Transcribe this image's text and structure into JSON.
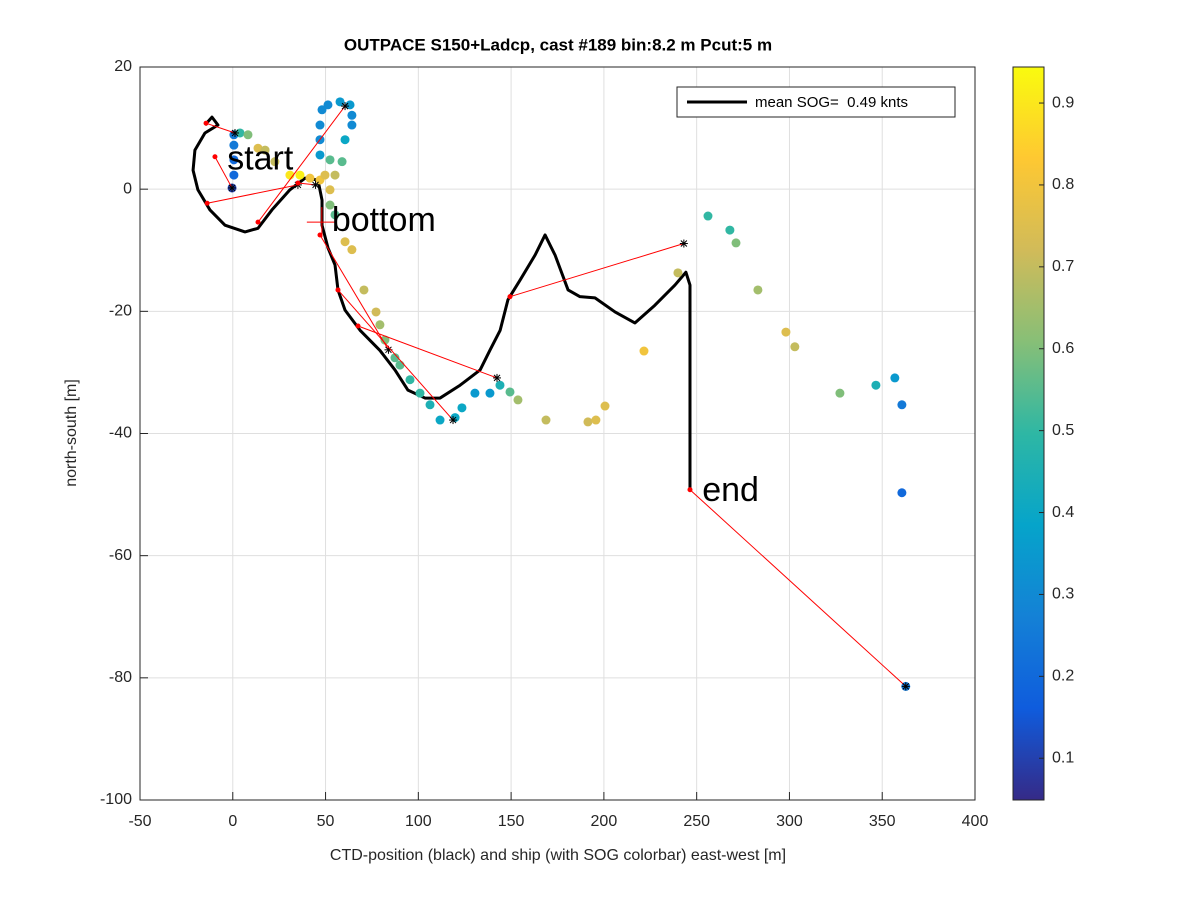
{
  "chart_data": {
    "type": "scatter",
    "title": "OUTPACE S150+Ladcp, cast #189 bin:8.2 m  Pcut:5 m",
    "x_label": "CTD-position (black) and ship (with SOG colorbar) east-west [m]",
    "y_label": "north-south [m]",
    "xlim": [
      -50,
      400
    ],
    "ylim": [
      -100,
      20
    ],
    "xticks": [
      -50,
      0,
      50,
      100,
      150,
      200,
      250,
      300,
      350,
      400
    ],
    "yticks": [
      -100,
      -80,
      -60,
      -40,
      -20,
      0,
      20
    ],
    "grid": true,
    "legend_position": "top-right",
    "series": [
      {
        "name": "mean SOG=  0.49 knts",
        "color": "#000000",
        "x": [
          -15.0,
          -11.2,
          -8.0,
          -15.0,
          -20.4,
          -21.4,
          -18.8,
          -12.3,
          -4.2,
          6.6,
          13.6,
          21.1,
          30.8,
          38.9,
          45.9,
          48.1,
          48.1,
          51.3,
          55.1,
          56.7,
          60.5,
          68.6,
          79.3,
          87.4,
          94.4,
          103.6,
          111.7,
          122.5,
          133.3,
          138.7,
          144.1,
          148.3,
          154.8,
          162.9,
          168.3,
          173.7,
          180.7,
          187.1,
          195.2,
          206.0,
          216.7,
          227.5,
          238.3,
          244.2,
          246.4,
          246.4
        ],
        "y": [
          10.5,
          11.8,
          10.5,
          9.2,
          6.4,
          3.1,
          -0.1,
          -3.4,
          -5.9,
          -7.0,
          -6.4,
          -3.4,
          -0.1,
          1.8,
          1.5,
          -1.8,
          -5.9,
          -9.6,
          -12.4,
          -16.5,
          -19.8,
          -23.1,
          -26.4,
          -29.6,
          -32.9,
          -34.2,
          -34.2,
          -32.1,
          -29.6,
          -26.3,
          -23.1,
          -18.1,
          -14.9,
          -10.8,
          -7.5,
          -10.8,
          -16.5,
          -17.6,
          -17.8,
          -20.1,
          -21.9,
          -19.0,
          -15.7,
          -13.6,
          -15.7,
          -49.2
        ]
      }
    ],
    "ship": {
      "x": [
        -0.4,
        0.6,
        0.6,
        0.6,
        0.6,
        3.9,
        8.2,
        13.6,
        17.4,
        22.7,
        30.8,
        36.2,
        41.6,
        47.0,
        49.7,
        52.4,
        47.0,
        47.0,
        47.0,
        48.1,
        51.3,
        57.8,
        63.2,
        64.2,
        64.2,
        60.5,
        58.9,
        55.1,
        52.4,
        52.4,
        55.1,
        60.5,
        64.2,
        70.7,
        77.2,
        79.3,
        82.0,
        87.4,
        90.1,
        95.5,
        100.9,
        106.3,
        111.7,
        119.8,
        123.5,
        130.5,
        138.6,
        144.0,
        149.4,
        153.7,
        168.8,
        191.4,
        195.7,
        200.6,
        221.6,
        239.9,
        256.1,
        267.9,
        271.2,
        283.0,
        298.1,
        302.9,
        327.2,
        346.6,
        356.8,
        360.6,
        360.6,
        362.7
      ],
      "y": [
        0.2,
        2.3,
        4.8,
        7.2,
        8.9,
        9.2,
        8.9,
        6.7,
        6.4,
        4.5,
        2.3,
        2.3,
        1.8,
        1.5,
        2.3,
        4.8,
        5.6,
        8.1,
        10.5,
        13.0,
        13.8,
        14.3,
        13.8,
        12.1,
        10.5,
        8.1,
        4.5,
        2.3,
        -0.1,
        -2.6,
        -4.2,
        -8.6,
        -9.9,
        -16.5,
        -20.1,
        -22.2,
        -24.7,
        -27.6,
        -28.8,
        -31.2,
        -33.4,
        -35.3,
        -37.8,
        -37.4,
        -35.8,
        -33.4,
        -33.4,
        -32.1,
        -33.2,
        -34.5,
        -37.8,
        -38.1,
        -37.8,
        -35.5,
        -26.5,
        -13.7,
        -4.4,
        -6.7,
        -8.8,
        -16.5,
        -23.4,
        -25.8,
        -33.4,
        -32.1,
        -30.9,
        -35.3,
        -49.7,
        -81.4
      ],
      "sog": [
        0.1,
        0.2,
        0.2,
        0.25,
        0.25,
        0.5,
        0.6,
        0.75,
        0.7,
        0.7,
        0.9,
        0.92,
        0.8,
        0.8,
        0.75,
        0.55,
        0.35,
        0.3,
        0.3,
        0.3,
        0.3,
        0.35,
        0.35,
        0.3,
        0.3,
        0.4,
        0.55,
        0.7,
        0.75,
        0.6,
        0.55,
        0.75,
        0.75,
        0.7,
        0.72,
        0.65,
        0.6,
        0.55,
        0.55,
        0.5,
        0.5,
        0.45,
        0.4,
        0.4,
        0.4,
        0.35,
        0.35,
        0.45,
        0.55,
        0.65,
        0.7,
        0.72,
        0.75,
        0.75,
        0.8,
        0.7,
        0.5,
        0.5,
        0.6,
        0.65,
        0.75,
        0.7,
        0.6,
        0.45,
        0.35,
        0.25,
        0.2,
        0.25
      ]
    },
    "links": {
      "color": "#ff0000",
      "x_start": [
        -14.4,
        -9.6,
        -13.8,
        13.6,
        35.1,
        47.0,
        56.7,
        67.5,
        149.4,
        246.4
      ],
      "y_start": [
        10.8,
        5.3,
        -2.3,
        -5.4,
        1.0,
        -7.5,
        -16.5,
        -22.4,
        -17.6,
        -49.2
      ],
      "x_end": [
        1.2,
        -0.4,
        35.1,
        60.5,
        44.6,
        83.9,
        118.7,
        142.4,
        243.1,
        362.7
      ],
      "y_end": [
        9.2,
        0.2,
        0.7,
        13.6,
        0.7,
        -26.3,
        -37.8,
        -30.9,
        -8.9,
        -81.4
      ]
    },
    "annotations": [
      {
        "text": "start",
        "x": -3,
        "y": 4.7
      },
      {
        "text": "bottom",
        "x": 48,
        "y": -5.4
      },
      {
        "text": "end",
        "x": 253,
        "y": -49.6
      }
    ],
    "colorbar": {
      "clim": [
        0.049,
        0.944
      ],
      "ticks": [
        0.1,
        0.2,
        0.3,
        0.4,
        0.5,
        0.6,
        0.7,
        0.8,
        0.9
      ],
      "colormap": [
        "#352a87",
        "#0f5cdd",
        "#1481d6",
        "#06a4ca",
        "#2eb7a4",
        "#87bf77",
        "#d1bb59",
        "#fec832",
        "#f9fb0e"
      ]
    }
  }
}
